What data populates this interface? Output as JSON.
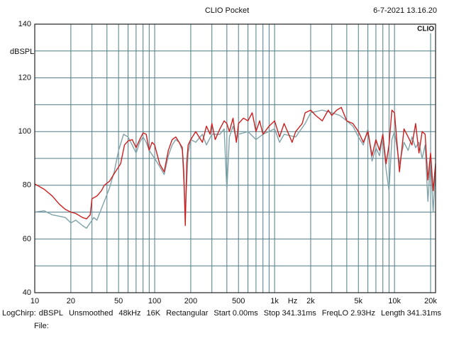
{
  "chart_data": {
    "type": "line",
    "title": "CLIO Pocket",
    "timestamp": "6-7-2021 13.16.20",
    "badge": "CLIO",
    "y_label": "dBSPL",
    "x_unit": "Hz",
    "log_x": true,
    "grid": true,
    "xlim": [
      10,
      22000
    ],
    "ylim": [
      40,
      140
    ],
    "yticks": [
      40,
      60,
      80,
      100,
      120,
      140
    ],
    "ygrid": [
      40,
      50,
      60,
      70,
      80,
      90,
      100,
      110,
      120,
      130,
      140
    ],
    "xticks": [
      10,
      20,
      50,
      100,
      200,
      500,
      {
        "value": 1000,
        "label": "1k"
      },
      {
        "value": 2000,
        "label": "2k"
      },
      {
        "value": 5000,
        "label": "5k"
      },
      {
        "value": 10000,
        "label": "10k"
      },
      {
        "value": 20000,
        "label": "20k"
      }
    ],
    "xgrid": [
      10,
      20,
      30,
      40,
      50,
      60,
      70,
      80,
      90,
      100,
      200,
      300,
      400,
      500,
      600,
      700,
      800,
      900,
      1000,
      2000,
      3000,
      4000,
      5000,
      6000,
      7000,
      8000,
      9000,
      10000,
      20000
    ],
    "series": [
      {
        "color": "#7fa3a8",
        "x": [
          10,
          12,
          14,
          16,
          18,
          20,
          22,
          25,
          27,
          29,
          31,
          33,
          35,
          38,
          42,
          46,
          50,
          55,
          60,
          65,
          70,
          75,
          80,
          85,
          90,
          100,
          110,
          120,
          130,
          140,
          150,
          160,
          170,
          180,
          190,
          200,
          220,
          250,
          270,
          300,
          350,
          380,
          400,
          420,
          450,
          480,
          500,
          600,
          700,
          800,
          1000,
          1100,
          1200,
          1500,
          1800,
          2000,
          2500,
          3000,
          3500,
          4000,
          4500,
          5000,
          5500,
          6000,
          6500,
          7000,
          7500,
          8000,
          8500,
          9000,
          9500,
          10000,
          11000,
          12000,
          13000,
          14000,
          15000,
          16000,
          17000,
          18000,
          19000,
          20000,
          21000,
          22000
        ],
        "values": [
          70,
          70.5,
          69,
          68.5,
          68,
          66,
          67,
          65,
          64,
          66,
          68,
          67,
          70,
          74,
          79,
          85,
          93,
          99,
          98,
          95,
          92,
          96,
          98,
          96,
          93,
          90,
          87,
          84,
          91,
          95,
          97,
          96,
          93,
          70,
          92,
          97,
          96,
          99,
          95,
          99,
          99,
          101,
          78,
          98,
          102,
          97,
          99,
          100,
          97,
          99,
          101,
          96,
          99,
          98,
          103,
          107,
          108,
          107,
          106,
          104,
          102,
          98,
          95,
          101,
          89,
          94,
          91,
          98,
          86,
          78,
          97,
          100,
          88,
          96,
          93,
          98,
          94,
          96,
          90,
          95,
          74,
          90,
          70,
          87
        ]
      },
      {
        "color": "#cc2020",
        "x": [
          10,
          12,
          14,
          16,
          18,
          20,
          22,
          25,
          27,
          29,
          30,
          33,
          36,
          38,
          42,
          47,
          52,
          56,
          60,
          65,
          70,
          75,
          80,
          85,
          90,
          95,
          100,
          110,
          120,
          130,
          140,
          150,
          160,
          170,
          175,
          180,
          185,
          190,
          200,
          220,
          250,
          270,
          290,
          300,
          320,
          350,
          380,
          400,
          420,
          450,
          480,
          500,
          550,
          600,
          650,
          700,
          750,
          800,
          900,
          1000,
          1100,
          1200,
          1400,
          1500,
          1700,
          1800,
          2000,
          2200,
          2500,
          2800,
          3000,
          3300,
          3600,
          4000,
          4500,
          5000,
          5500,
          6000,
          6500,
          7000,
          7500,
          8000,
          8500,
          9000,
          9500,
          10000,
          11000,
          12000,
          13000,
          14000,
          15000,
          16000,
          17000,
          18000,
          19000,
          20000,
          21000,
          22000
        ],
        "values": [
          80.5,
          78.5,
          76,
          73,
          71,
          70,
          69.5,
          68,
          67.5,
          69,
          75,
          76,
          78,
          80,
          81.5,
          85,
          88,
          95,
          96.5,
          97,
          94,
          97,
          99.5,
          99,
          93,
          96,
          95,
          88,
          85,
          93,
          97,
          98,
          96,
          94,
          85,
          65,
          88,
          95,
          97,
          100,
          96,
          102,
          99,
          103,
          97,
          101,
          104,
          103,
          100,
          105,
          96,
          103,
          105,
          104,
          107,
          100,
          104,
          99,
          102,
          104,
          98,
          103,
          96,
          100,
          103,
          107,
          108,
          106,
          104,
          108,
          106,
          108,
          109,
          104,
          103,
          100,
          96,
          100,
          91,
          97,
          93,
          99,
          88,
          95,
          108,
          107,
          85,
          101,
          98,
          95,
          103,
          92,
          100,
          99,
          82,
          92,
          78,
          88
        ]
      }
    ],
    "info": [
      "LogChirp:",
      "dBSPL",
      "Unsmoothed",
      "48kHz",
      "16K",
      "Rectangular",
      "Start 0.00ms",
      "Stop 341.31ms",
      "FreqLO 2.93Hz",
      "Length 341.31ms"
    ],
    "file_label": "File:"
  }
}
